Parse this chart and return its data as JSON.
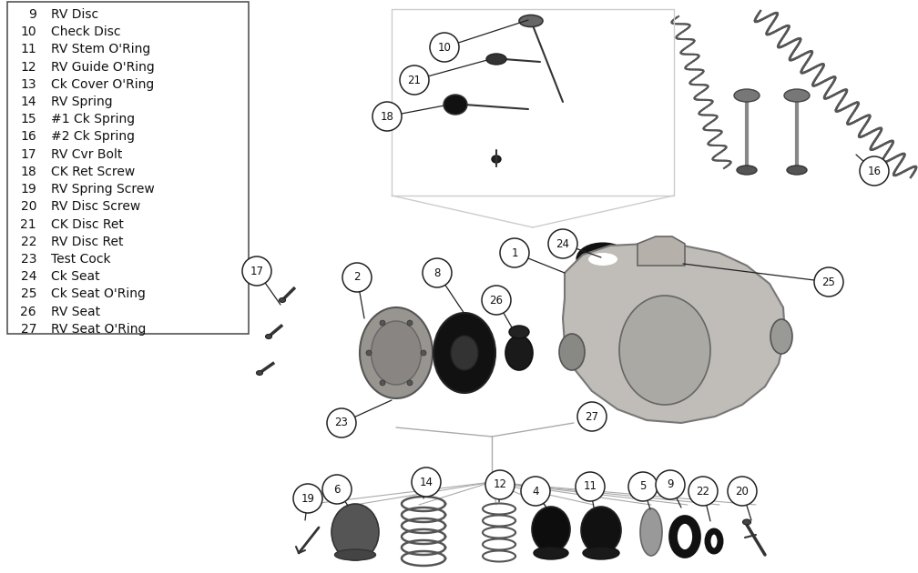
{
  "page_bg": "#ffffff",
  "text_color": "#111111",
  "legend_items": [
    [
      9,
      "RV Disc"
    ],
    [
      10,
      "Check Disc"
    ],
    [
      11,
      "RV Stem O'Ring"
    ],
    [
      12,
      "RV Guide O'Ring"
    ],
    [
      13,
      "Ck Cover O'Ring"
    ],
    [
      14,
      "RV Spring"
    ],
    [
      15,
      "#1 Ck Spring"
    ],
    [
      16,
      "#2 Ck Spring"
    ],
    [
      17,
      "RV Cvr Bolt"
    ],
    [
      18,
      "CK Ret Screw"
    ],
    [
      19,
      "RV Spring Screw"
    ],
    [
      20,
      "RV Disc Screw"
    ],
    [
      21,
      "CK Disc Ret"
    ],
    [
      22,
      "RV Disc Ret"
    ],
    [
      23,
      "Test Cock"
    ],
    [
      24,
      "Ck Seat"
    ],
    [
      25,
      "Ck Seat O'Ring"
    ],
    [
      26,
      "RV Seat"
    ],
    [
      27,
      "RV Seat O'Ring"
    ]
  ],
  "circle_r": 0.018,
  "circle_edge": "#222222",
  "circle_face": "#ffffff",
  "part_dark": "#111111",
  "part_mid": "#666666",
  "part_light": "#aaaaaa",
  "part_metal": "#999999"
}
